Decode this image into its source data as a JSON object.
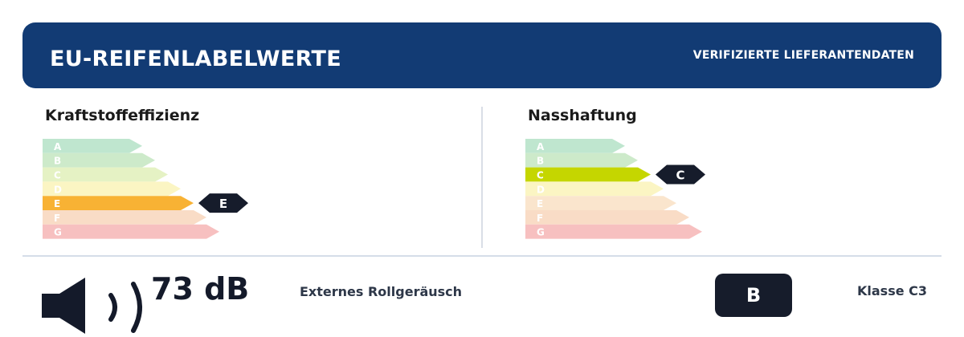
{
  "header": {
    "title": "EU-REIFENLABELWERTE",
    "subtitle": "VERIFIZIERTE LIEFERANTENDATEN"
  },
  "fuel_efficiency": {
    "title": "Kraftstoffeffizienz",
    "selected": "E",
    "classes": [
      {
        "letter": "A",
        "color": "#bfe6cf"
      },
      {
        "letter": "B",
        "color": "#cdeaca"
      },
      {
        "letter": "C",
        "color": "#e5f2c4"
      },
      {
        "letter": "D",
        "color": "#fbf5c3"
      },
      {
        "letter": "E",
        "color": "#f8b234"
      },
      {
        "letter": "F",
        "color": "#f9dcc6"
      },
      {
        "letter": "G",
        "color": "#f7c0c0"
      }
    ]
  },
  "wet_grip": {
    "title": "Nasshaftung",
    "selected": "C",
    "classes": [
      {
        "letter": "A",
        "color": "#bfe6cf"
      },
      {
        "letter": "B",
        "color": "#cdeaca"
      },
      {
        "letter": "C",
        "color": "#c5d600"
      },
      {
        "letter": "D",
        "color": "#fbf5c3"
      },
      {
        "letter": "E",
        "color": "#fae5cd"
      },
      {
        "letter": "F",
        "color": "#f9dcc6"
      },
      {
        "letter": "G",
        "color": "#f7c0c0"
      }
    ]
  },
  "noise": {
    "value": "73 dB",
    "label": "Externes Rollgeräusch",
    "class": "B",
    "icon": "speaker-icon"
  },
  "tyre_class": "Klasse C3",
  "colors": {
    "header_bg": "#123b74",
    "marker_bg": "#161c2b"
  }
}
